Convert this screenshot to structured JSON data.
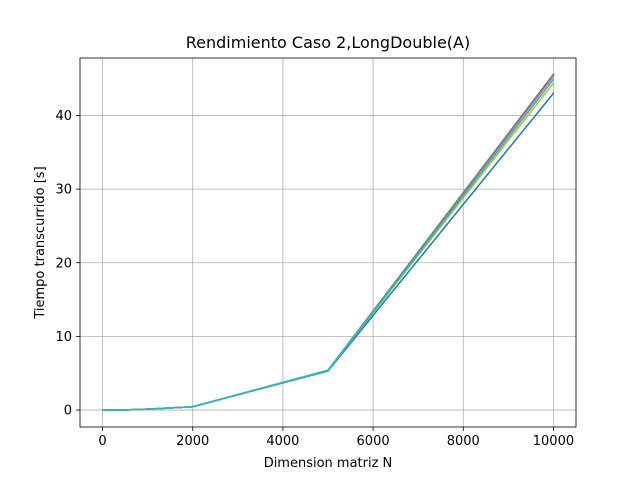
{
  "chart_data": {
    "type": "line",
    "title": "Rendimiento Caso 2,LongDouble(A)",
    "xlabel": "Dimension matriz N",
    "ylabel": "Tiempo transcurrido [s]",
    "xlim": [
      -500,
      10500
    ],
    "ylim": [
      -2.3,
      47.8
    ],
    "xticks": [
      0,
      2000,
      4000,
      6000,
      8000,
      10000
    ],
    "xtick_labels": [
      "0",
      "2000",
      "4000",
      "6000",
      "8000",
      "10000"
    ],
    "yticks": [
      0,
      10,
      20,
      30,
      40
    ],
    "ytick_labels": [
      "0",
      "10",
      "20",
      "30",
      "40"
    ],
    "grid": true,
    "x": [
      10,
      100,
      500,
      1000,
      2000,
      5000,
      10000
    ],
    "series": [
      {
        "color": "#1f77b4",
        "values": [
          0.0,
          0.0,
          0.02,
          0.12,
          0.45,
          5.3,
          43.0
        ]
      },
      {
        "color": "#ff7f0e",
        "values": [
          0.0,
          0.0,
          0.02,
          0.12,
          0.45,
          5.4,
          45.5
        ]
      },
      {
        "color": "#2ca02c",
        "values": [
          0.0,
          0.0,
          0.02,
          0.12,
          0.45,
          5.4,
          45.4
        ]
      },
      {
        "color": "#d62728",
        "values": [
          0.0,
          0.0,
          0.02,
          0.12,
          0.45,
          5.4,
          45.5
        ]
      },
      {
        "color": "#9467bd",
        "values": [
          0.0,
          0.0,
          0.02,
          0.12,
          0.45,
          5.4,
          45.4
        ]
      },
      {
        "color": "#8c564b",
        "values": [
          0.0,
          0.0,
          0.02,
          0.12,
          0.45,
          5.4,
          45.6
        ]
      },
      {
        "color": "#e377c2",
        "values": [
          0.0,
          0.0,
          0.02,
          0.12,
          0.45,
          5.4,
          45.3
        ]
      },
      {
        "color": "#7f7f7f",
        "values": [
          0.0,
          0.0,
          0.02,
          0.12,
          0.45,
          5.4,
          45.5
        ]
      },
      {
        "color": "#bcbd22",
        "values": [
          0.0,
          0.0,
          0.02,
          0.12,
          0.45,
          5.4,
          44.4
        ]
      },
      {
        "color": "#17becf",
        "values": [
          0.0,
          0.0,
          0.02,
          0.12,
          0.45,
          5.4,
          44.9
        ]
      }
    ]
  }
}
